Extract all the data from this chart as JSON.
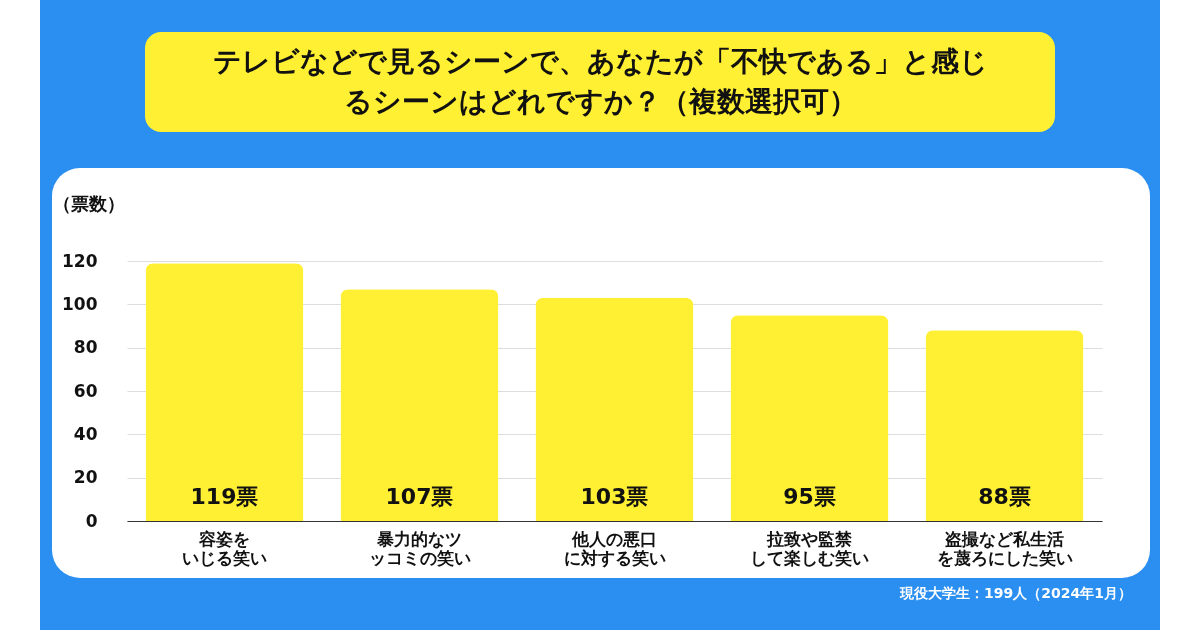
{
  "chart_data": {
    "type": "bar",
    "title": "テレビなどで見るシーンで、あなたが「不快である」と感じるシーンはどれですか？（複数選択可）",
    "ylabel": "（票数）",
    "categories": [
      "容姿をいじる笑い",
      "暴力的なツッコミの笑い",
      "他人の悪口に対する笑い",
      "拉致や監禁して楽しむ笑い",
      "盗撮など私生活を蔑ろにした笑い"
    ],
    "values": [
      119,
      107,
      103,
      95,
      88
    ],
    "value_labels": [
      "119票",
      "107票",
      "103票",
      "95票",
      "88票"
    ],
    "color": "#fff033",
    "ylim": [
      0,
      120
    ],
    "yticks": [
      0,
      20,
      40,
      60,
      80,
      100,
      120
    ],
    "grid": "y",
    "annotations": [
      "現役大学生：199人（2024年1月）"
    ]
  }
}
